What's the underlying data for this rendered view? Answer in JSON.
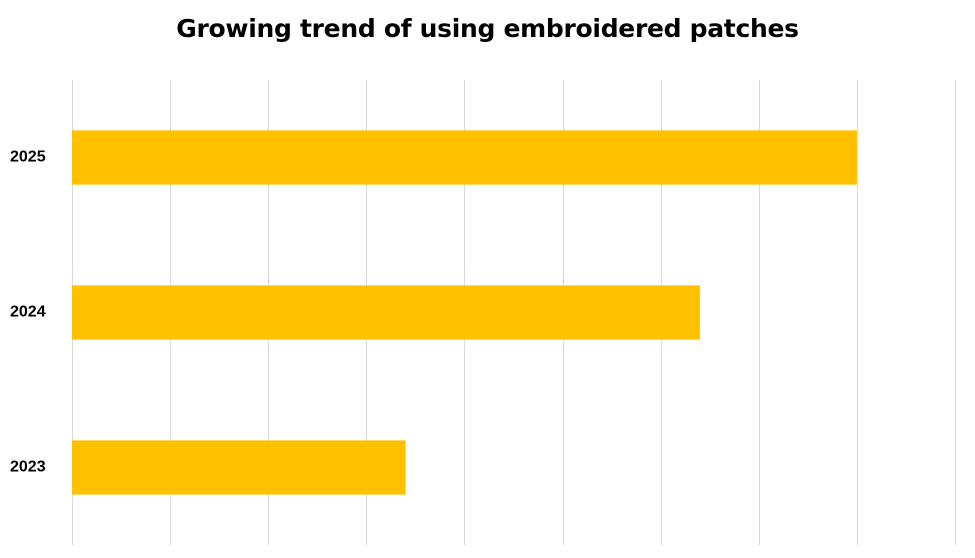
{
  "chart_data": {
    "type": "bar",
    "orientation": "horizontal",
    "title": "Growing trend of using embroidered patches",
    "categories": [
      "2023",
      "2024",
      "2025"
    ],
    "values": [
      34,
      64,
      80
    ],
    "xlim": [
      0,
      90
    ],
    "x_tick_step": 10,
    "x_tick_labels_visible": false,
    "xlabel": "",
    "ylabel": "",
    "grid": "vertical",
    "legend": "none",
    "bar_color": "#FFC000",
    "grid_color": "#D9D9D9"
  }
}
